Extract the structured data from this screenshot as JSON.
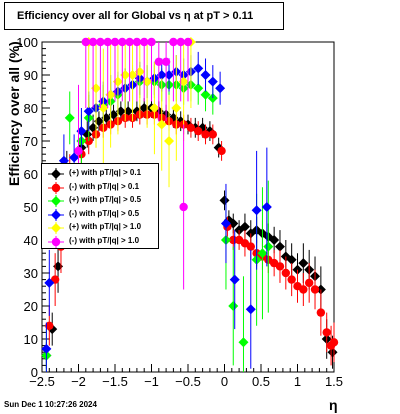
{
  "page": {
    "datestamp": "Sun Dec  1 10:27:26 2024"
  },
  "chart_data": {
    "type": "scatter",
    "title": "Efficiency over all for Global vs   η at pT > 0.11",
    "xlabel": "η",
    "ylabel": "Efficiency over all (%)",
    "xlim": [
      -2.5,
      1.5
    ],
    "ylim": [
      0,
      100
    ],
    "xticks": [
      -2.5,
      -2,
      -1.5,
      -1,
      -0.5,
      0,
      0.5,
      1,
      1.5
    ],
    "xtick_labels": [
      "−2.5",
      "−2",
      "−1.5",
      "−1",
      "−0.5",
      "0",
      "0.5",
      "1",
      "1.5"
    ],
    "yticks": [
      0,
      10,
      20,
      30,
      40,
      50,
      60,
      70,
      80,
      90,
      100
    ],
    "ytick_labels": [
      "0",
      "10",
      "20",
      "30",
      "40",
      "50",
      "60",
      "70",
      "80",
      "90",
      "100"
    ],
    "grid": false,
    "legend_position": "left-middle",
    "series": [
      {
        "name": "(+) with pT/|q| > 0.1",
        "color": "#000000",
        "marker": "diamond",
        "points": [
          {
            "x": -2.44,
            "y": 5,
            "e": 4
          },
          {
            "x": -2.36,
            "y": 13,
            "e": 5
          },
          {
            "x": -2.28,
            "y": 32,
            "e": 8
          },
          {
            "x": -2.16,
            "y": 61,
            "e": 6
          },
          {
            "x": -1.96,
            "y": 68,
            "e": 5
          },
          {
            "x": -1.88,
            "y": 72,
            "e": 4
          },
          {
            "x": -1.8,
            "y": 74,
            "e": 4
          },
          {
            "x": -1.72,
            "y": 76,
            "e": 3
          },
          {
            "x": -1.62,
            "y": 77,
            "e": 3
          },
          {
            "x": -1.52,
            "y": 78,
            "e": 3
          },
          {
            "x": -1.42,
            "y": 79,
            "e": 3
          },
          {
            "x": -1.32,
            "y": 79,
            "e": 3
          },
          {
            "x": -1.2,
            "y": 79,
            "e": 3
          },
          {
            "x": -1.1,
            "y": 80,
            "e": 3
          },
          {
            "x": -1.0,
            "y": 80,
            "e": 3
          },
          {
            "x": -0.9,
            "y": 79,
            "e": 3
          },
          {
            "x": -0.8,
            "y": 78,
            "e": 3
          },
          {
            "x": -0.7,
            "y": 77,
            "e": 3
          },
          {
            "x": -0.6,
            "y": 76,
            "e": 3
          },
          {
            "x": -0.5,
            "y": 75,
            "e": 3
          },
          {
            "x": -0.4,
            "y": 74,
            "e": 3
          },
          {
            "x": -0.3,
            "y": 74,
            "e": 3
          },
          {
            "x": -0.2,
            "y": 73,
            "e": 3
          },
          {
            "x": -0.08,
            "y": 68,
            "e": 3
          },
          {
            "x": 0.0,
            "y": 52,
            "e": 3
          },
          {
            "x": 0.06,
            "y": 46,
            "e": 3
          },
          {
            "x": 0.12,
            "y": 45,
            "e": 3
          },
          {
            "x": 0.2,
            "y": 43,
            "e": 3
          },
          {
            "x": 0.28,
            "y": 44,
            "e": 4
          },
          {
            "x": 0.36,
            "y": 42,
            "e": 4
          },
          {
            "x": 0.44,
            "y": 43,
            "e": 4
          },
          {
            "x": 0.52,
            "y": 42,
            "e": 4
          },
          {
            "x": 0.6,
            "y": 41,
            "e": 4
          },
          {
            "x": 0.68,
            "y": 40,
            "e": 4
          },
          {
            "x": 0.76,
            "y": 38,
            "e": 5
          },
          {
            "x": 0.84,
            "y": 35,
            "e": 5
          },
          {
            "x": 0.92,
            "y": 34,
            "e": 5
          },
          {
            "x": 1.0,
            "y": 31,
            "e": 5
          },
          {
            "x": 1.08,
            "y": 33,
            "e": 6
          },
          {
            "x": 1.16,
            "y": 31,
            "e": 6
          },
          {
            "x": 1.24,
            "y": 29,
            "e": 6
          },
          {
            "x": 1.32,
            "y": 25,
            "e": 7
          },
          {
            "x": 1.4,
            "y": 10,
            "e": 6
          },
          {
            "x": 1.48,
            "y": 6,
            "e": 5
          }
        ]
      },
      {
        "name": "(-) with pT/|q| > 0.1",
        "color": "#ff0000",
        "marker": "circle",
        "points": [
          {
            "x": -2.4,
            "y": 14,
            "e": 6
          },
          {
            "x": -2.32,
            "y": 28,
            "e": 8
          },
          {
            "x": -2.24,
            "y": 38,
            "e": 8
          },
          {
            "x": -2.12,
            "y": 60,
            "e": 6
          },
          {
            "x": -1.96,
            "y": 66,
            "e": 5
          },
          {
            "x": -1.86,
            "y": 70,
            "e": 4
          },
          {
            "x": -1.76,
            "y": 72,
            "e": 4
          },
          {
            "x": -1.66,
            "y": 74,
            "e": 3
          },
          {
            "x": -1.56,
            "y": 75,
            "e": 3
          },
          {
            "x": -1.46,
            "y": 76,
            "e": 3
          },
          {
            "x": -1.36,
            "y": 77,
            "e": 3
          },
          {
            "x": -1.26,
            "y": 77,
            "e": 3
          },
          {
            "x": -1.16,
            "y": 78,
            "e": 3
          },
          {
            "x": -1.06,
            "y": 78,
            "e": 3
          },
          {
            "x": -0.96,
            "y": 78,
            "e": 3
          },
          {
            "x": -0.86,
            "y": 77,
            "e": 3
          },
          {
            "x": -0.76,
            "y": 76,
            "e": 3
          },
          {
            "x": -0.66,
            "y": 75,
            "e": 3
          },
          {
            "x": -0.56,
            "y": 75,
            "e": 3
          },
          {
            "x": -0.46,
            "y": 74,
            "e": 3
          },
          {
            "x": -0.36,
            "y": 73,
            "e": 3
          },
          {
            "x": -0.26,
            "y": 72,
            "e": 3
          },
          {
            "x": -0.16,
            "y": 72,
            "e": 3
          },
          {
            "x": -0.04,
            "y": 67,
            "e": 3
          },
          {
            "x": 0.04,
            "y": 44,
            "e": 3
          },
          {
            "x": 0.12,
            "y": 40,
            "e": 3
          },
          {
            "x": 0.2,
            "y": 40,
            "e": 3
          },
          {
            "x": 0.28,
            "y": 39,
            "e": 4
          },
          {
            "x": 0.36,
            "y": 38,
            "e": 4
          },
          {
            "x": 0.44,
            "y": 36,
            "e": 4
          },
          {
            "x": 0.52,
            "y": 35,
            "e": 4
          },
          {
            "x": 0.6,
            "y": 34,
            "e": 4
          },
          {
            "x": 0.68,
            "y": 33,
            "e": 4
          },
          {
            "x": 0.76,
            "y": 32,
            "e": 5
          },
          {
            "x": 0.84,
            "y": 30,
            "e": 5
          },
          {
            "x": 0.92,
            "y": 28,
            "e": 5
          },
          {
            "x": 1.0,
            "y": 26,
            "e": 5
          },
          {
            "x": 1.08,
            "y": 25,
            "e": 5
          },
          {
            "x": 1.16,
            "y": 27,
            "e": 6
          },
          {
            "x": 1.24,
            "y": 25,
            "e": 6
          },
          {
            "x": 1.32,
            "y": 18,
            "e": 7
          },
          {
            "x": 1.4,
            "y": 12,
            "e": 6
          },
          {
            "x": 1.46,
            "y": 8,
            "e": 6
          },
          {
            "x": 1.5,
            "y": 9,
            "e": 6
          }
        ]
      },
      {
        "name": "(+) with pT/|q| > 0.5",
        "color": "#00ff00",
        "marker": "diamond",
        "points": [
          {
            "x": -2.44,
            "y": 5,
            "e": 8
          },
          {
            "x": -2.12,
            "y": 77,
            "e": 8
          },
          {
            "x": -1.96,
            "y": 70,
            "e": 8
          },
          {
            "x": -1.86,
            "y": 77,
            "e": 7
          },
          {
            "x": -1.76,
            "y": 80,
            "e": 6
          },
          {
            "x": -1.66,
            "y": 81,
            "e": 6
          },
          {
            "x": -1.56,
            "y": 82,
            "e": 6
          },
          {
            "x": -1.46,
            "y": 84,
            "e": 6
          },
          {
            "x": -1.36,
            "y": 86,
            "e": 6
          },
          {
            "x": -1.26,
            "y": 87,
            "e": 6
          },
          {
            "x": -1.16,
            "y": 88,
            "e": 5
          },
          {
            "x": -1.06,
            "y": 88,
            "e": 5
          },
          {
            "x": -0.96,
            "y": 88,
            "e": 5
          },
          {
            "x": -0.86,
            "y": 87,
            "e": 5
          },
          {
            "x": -0.76,
            "y": 87,
            "e": 5
          },
          {
            "x": -0.66,
            "y": 87,
            "e": 5
          },
          {
            "x": -0.56,
            "y": 86,
            "e": 5
          },
          {
            "x": -0.46,
            "y": 87,
            "e": 5
          },
          {
            "x": -0.36,
            "y": 86,
            "e": 5
          },
          {
            "x": -0.26,
            "y": 84,
            "e": 5
          },
          {
            "x": -0.16,
            "y": 83,
            "e": 5
          },
          {
            "x": 0.02,
            "y": 40,
            "e": 15
          },
          {
            "x": 0.12,
            "y": 20,
            "e": 18
          },
          {
            "x": 0.26,
            "y": 9,
            "e": 20
          },
          {
            "x": 0.44,
            "y": 34,
            "e": 20
          },
          {
            "x": 0.52,
            "y": 36,
            "e": 20
          },
          {
            "x": 0.6,
            "y": 38,
            "e": 20
          }
        ]
      },
      {
        "name": "(-) with pT/|q| > 0.5",
        "color": "#0000ff",
        "marker": "diamond",
        "points": [
          {
            "x": -2.44,
            "y": 7,
            "e": 8
          },
          {
            "x": -2.4,
            "y": 27,
            "e": 10
          },
          {
            "x": -2.2,
            "y": 64,
            "e": 8
          },
          {
            "x": -2.06,
            "y": 65,
            "e": 7
          },
          {
            "x": -1.96,
            "y": 73,
            "e": 7
          },
          {
            "x": -1.86,
            "y": 79,
            "e": 6
          },
          {
            "x": -1.76,
            "y": 80,
            "e": 6
          },
          {
            "x": -1.66,
            "y": 82,
            "e": 6
          },
          {
            "x": -1.56,
            "y": 84,
            "e": 6
          },
          {
            "x": -1.46,
            "y": 85,
            "e": 6
          },
          {
            "x": -1.36,
            "y": 86,
            "e": 6
          },
          {
            "x": -1.26,
            "y": 87,
            "e": 5
          },
          {
            "x": -1.16,
            "y": 89,
            "e": 5
          },
          {
            "x": -1.06,
            "y": 88,
            "e": 5
          },
          {
            "x": -0.96,
            "y": 89,
            "e": 5
          },
          {
            "x": -0.86,
            "y": 90,
            "e": 5
          },
          {
            "x": -0.76,
            "y": 90,
            "e": 5
          },
          {
            "x": -0.66,
            "y": 91,
            "e": 5
          },
          {
            "x": -0.56,
            "y": 90,
            "e": 5
          },
          {
            "x": -0.46,
            "y": 91,
            "e": 5
          },
          {
            "x": -0.36,
            "y": 92,
            "e": 5
          },
          {
            "x": -0.26,
            "y": 90,
            "e": 5
          },
          {
            "x": -0.16,
            "y": 88,
            "e": 5
          },
          {
            "x": -0.06,
            "y": 86,
            "e": 5
          },
          {
            "x": 0.02,
            "y": 45,
            "e": 12
          },
          {
            "x": 0.14,
            "y": 28,
            "e": 15
          },
          {
            "x": 0.36,
            "y": 19,
            "e": 18
          },
          {
            "x": 0.44,
            "y": 49,
            "e": 18
          },
          {
            "x": 0.58,
            "y": 50,
            "e": 18
          }
        ]
      },
      {
        "name": "(+) with pT/|q| > 1.0",
        "color": "#ffff00",
        "marker": "diamond",
        "points": [
          {
            "x": -1.86,
            "y": 100,
            "e": 20
          },
          {
            "x": -1.76,
            "y": 86,
            "e": 18
          },
          {
            "x": -1.66,
            "y": 80,
            "e": 18
          },
          {
            "x": -1.56,
            "y": 84,
            "e": 16
          },
          {
            "x": -1.46,
            "y": 88,
            "e": 16
          },
          {
            "x": -1.36,
            "y": 90,
            "e": 14
          },
          {
            "x": -1.26,
            "y": 90,
            "e": 14
          },
          {
            "x": -1.16,
            "y": 91,
            "e": 14
          },
          {
            "x": -1.06,
            "y": 88,
            "e": 14
          },
          {
            "x": -0.96,
            "y": 80,
            "e": 14
          },
          {
            "x": -0.86,
            "y": 75,
            "e": 14
          },
          {
            "x": -0.76,
            "y": 70,
            "e": 14
          },
          {
            "x": -0.66,
            "y": 80,
            "e": 16
          },
          {
            "x": -0.56,
            "y": 88,
            "e": 18
          },
          {
            "x": -0.46,
            "y": 100,
            "e": 20
          }
        ]
      },
      {
        "name": "(-) with pT/|q| > 1.0",
        "color": "#ff00ff",
        "marker": "circle",
        "points": [
          {
            "x": -2.0,
            "y": 67,
            "e": 20
          },
          {
            "x": -1.9,
            "y": 100,
            "e": 20
          },
          {
            "x": -1.8,
            "y": 100,
            "e": 20
          },
          {
            "x": -1.7,
            "y": 100,
            "e": 20
          },
          {
            "x": -1.6,
            "y": 100,
            "e": 20
          },
          {
            "x": -1.5,
            "y": 100,
            "e": 18
          },
          {
            "x": -1.4,
            "y": 100,
            "e": 18
          },
          {
            "x": -1.3,
            "y": 100,
            "e": 18
          },
          {
            "x": -1.2,
            "y": 100,
            "e": 18
          },
          {
            "x": -1.1,
            "y": 100,
            "e": 18
          },
          {
            "x": -1.0,
            "y": 100,
            "e": 18
          },
          {
            "x": -0.9,
            "y": 94,
            "e": 18
          },
          {
            "x": -0.8,
            "y": 94,
            "e": 18
          },
          {
            "x": -0.7,
            "y": 100,
            "e": 18
          },
          {
            "x": -0.6,
            "y": 100,
            "e": 18
          },
          {
            "x": -0.5,
            "y": 100,
            "e": 18
          },
          {
            "x": -0.56,
            "y": 50,
            "e": 25
          }
        ]
      }
    ]
  }
}
